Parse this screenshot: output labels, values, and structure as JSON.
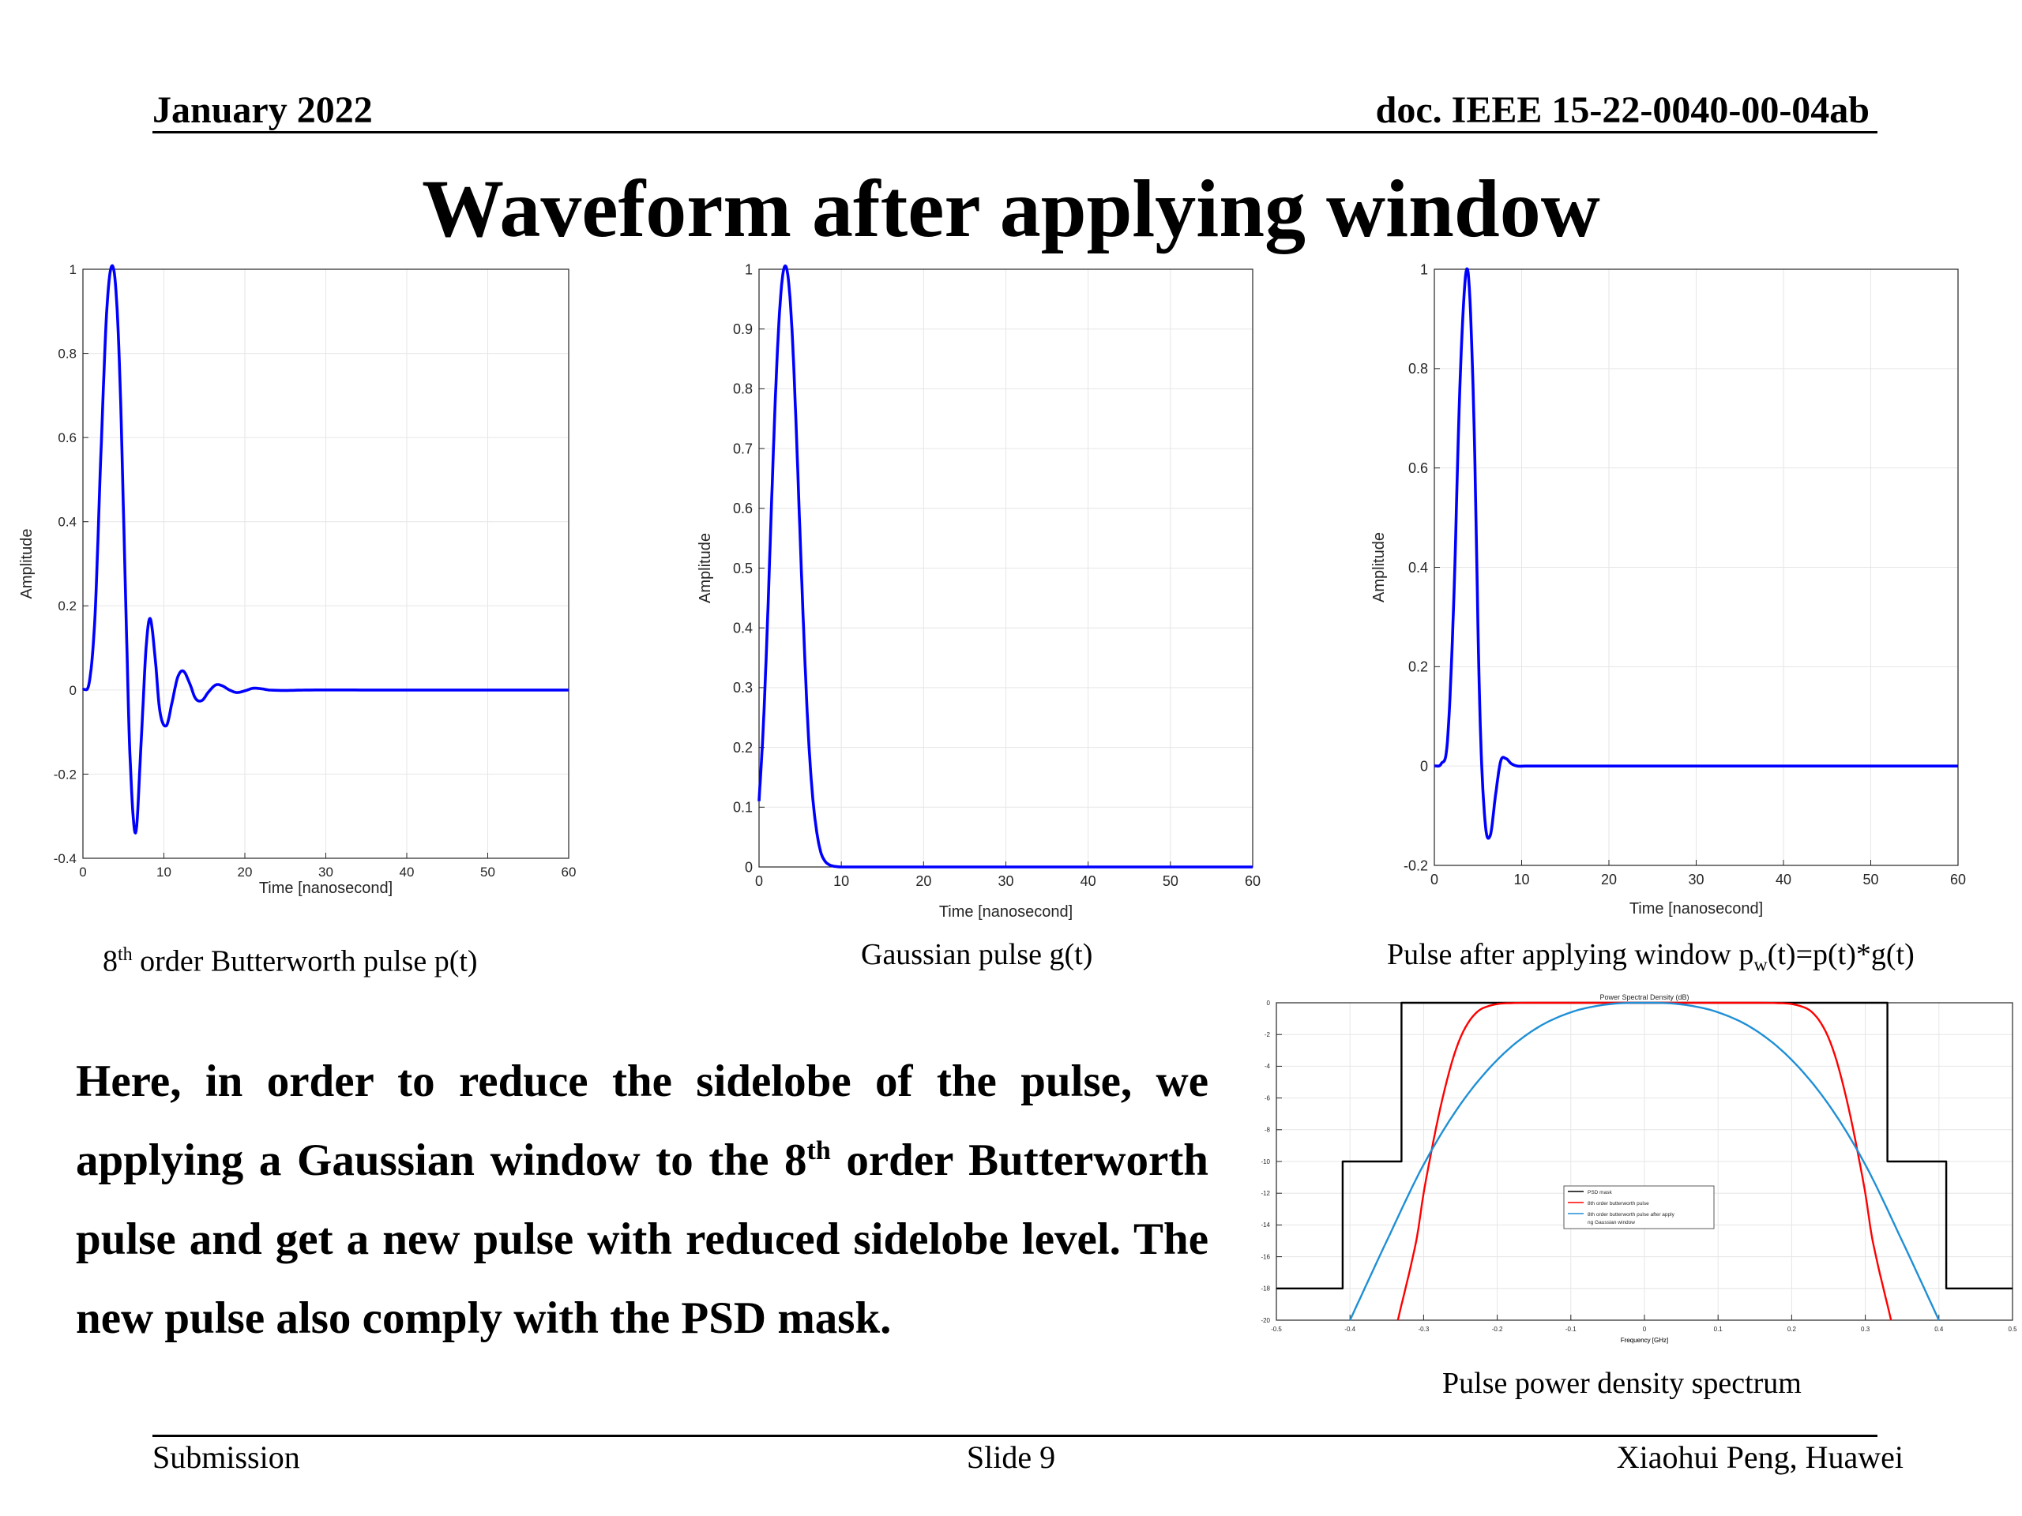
{
  "header": {
    "date": "January 2022",
    "doc_id": "doc. IEEE 15-22-0040-00-04ab"
  },
  "title": "Waveform after applying window",
  "captions": {
    "butterworth": {
      "sup": "th",
      "text": " order Butterworth pulse p(t)",
      "num": "8"
    },
    "gaussian": "Gaussian pulse g(t)",
    "windowed": {
      "pre": "Pulse after applying window p",
      "sub": "w",
      "post": "(t)=p(t)*g(t)"
    },
    "psd": "Pulse power density spectrum"
  },
  "body": {
    "p1": "Here, in order to reduce the sidelobe of the pulse, we applying a Gaussian window to the 8",
    "sup": "th",
    "p2": " order Butterworth pulse and get a new pulse with reduced sidelobe level. The new pulse also comply with the PSD mask."
  },
  "footer": {
    "left": "Submission",
    "center": "Slide 9",
    "right": "Xiaohui Peng, Huawei"
  },
  "colors": {
    "pulse": "#0000ff",
    "mask": "#000000",
    "butterworth": "#ff0000",
    "windowed": "#1f8fd6",
    "text": "#000000"
  },
  "chart_data": [
    {
      "id": "butterworth",
      "type": "line",
      "title": "",
      "xlabel": "Time [nanosecond]",
      "ylabel": "Amplitude",
      "xlim": [
        0,
        60
      ],
      "ylim": [
        -0.4,
        1
      ],
      "xticks": [
        0,
        10,
        20,
        30,
        40,
        50,
        60
      ],
      "yticks": [
        -0.4,
        -0.2,
        0,
        0.2,
        0.4,
        0.6,
        0.8,
        1
      ],
      "ytick_labels": [
        "-0.4",
        "-0.2",
        "0",
        "0.2",
        "0.4",
        "0.6",
        "0.8",
        "1"
      ],
      "grid": true,
      "series": [
        {
          "color": "#0000ff",
          "x": [
            0,
            0.8,
            1.5,
            2.2,
            3.0,
            3.8,
            4.5,
            5.3,
            5.8,
            6.5,
            7.2,
            7.8,
            8.3,
            8.9,
            9.5,
            10.3,
            11.0,
            11.7,
            12.4,
            13.2,
            13.9,
            14.7,
            15.5,
            16.4,
            17.2,
            18.1,
            19.0,
            20.0,
            21.0,
            22.0,
            23.0,
            25.0,
            28.0,
            35.0,
            60.0
          ],
          "y": [
            0,
            0.02,
            0.18,
            0.55,
            0.92,
            1.0,
            0.78,
            0.2,
            -0.15,
            -0.34,
            -0.12,
            0.1,
            0.17,
            0.08,
            -0.05,
            -0.085,
            -0.03,
            0.03,
            0.045,
            0.015,
            -0.02,
            -0.025,
            -0.005,
            0.012,
            0.01,
            0.0,
            -0.006,
            -0.002,
            0.004,
            0.003,
            0.0,
            -0.001,
            0.0,
            0.0,
            0.0
          ]
        }
      ]
    },
    {
      "id": "gaussian",
      "type": "line",
      "title": "",
      "xlabel": "Time [nanosecond]",
      "ylabel": "Amplitude",
      "xlim": [
        0,
        60
      ],
      "ylim": [
        0,
        1
      ],
      "xticks": [
        0,
        10,
        20,
        30,
        40,
        50,
        60
      ],
      "yticks": [
        0,
        0.1,
        0.2,
        0.3,
        0.4,
        0.5,
        0.6,
        0.7,
        0.8,
        0.9,
        1
      ],
      "ytick_labels": [
        "0",
        "0.1",
        "0.2",
        "0.3",
        "0.4",
        "0.5",
        "0.6",
        "0.7",
        "0.8",
        "0.9",
        "1"
      ],
      "grid": true,
      "series": [
        {
          "color": "#0000ff",
          "x": [
            0,
            0.5,
            1.0,
            1.5,
            2.0,
            2.5,
            3.0,
            3.5,
            4.0,
            4.5,
            5.0,
            5.5,
            6.0,
            6.5,
            7.0,
            7.5,
            8.0,
            8.5,
            9.0,
            9.5,
            10.0,
            11.0,
            12.0,
            60.0
          ],
          "y": [
            0.11,
            0.23,
            0.4,
            0.6,
            0.79,
            0.93,
            1.0,
            0.99,
            0.9,
            0.74,
            0.55,
            0.37,
            0.22,
            0.12,
            0.06,
            0.025,
            0.01,
            0.004,
            0.0015,
            0.0005,
            0.0,
            0.0,
            0.0,
            0.0
          ]
        }
      ]
    },
    {
      "id": "windowed",
      "type": "line",
      "title": "",
      "xlabel": "Time [nanosecond]",
      "ylabel": "Amplitude",
      "xlim": [
        0,
        60
      ],
      "ylim": [
        -0.2,
        1
      ],
      "xticks": [
        0,
        10,
        20,
        30,
        40,
        50,
        60
      ],
      "yticks": [
        -0.2,
        0,
        0.2,
        0.4,
        0.6,
        0.8,
        1
      ],
      "ytick_labels": [
        "-0.2",
        "0",
        "0.2",
        "0.4",
        "0.6",
        "0.8",
        "1"
      ],
      "grid": true,
      "series": [
        {
          "color": "#0000ff",
          "x": [
            0,
            0.8,
            1.5,
            2.2,
            3.0,
            3.8,
            4.5,
            5.2,
            5.8,
            6.4,
            7.0,
            7.6,
            8.2,
            8.8,
            9.5,
            10.5,
            12.0,
            60.0
          ],
          "y": [
            0,
            0.005,
            0.05,
            0.32,
            0.8,
            1.0,
            0.72,
            0.12,
            -0.11,
            -0.14,
            -0.06,
            0.01,
            0.015,
            0.005,
            0.0,
            0.0,
            0.0,
            0.0
          ]
        }
      ]
    },
    {
      "id": "psd",
      "type": "line",
      "title": "Power Spectral Density (dB)",
      "xlabel": "Frequency [GHz]",
      "ylabel": "",
      "xlim": [
        -0.5,
        0.5
      ],
      "ylim": [
        -20,
        0
      ],
      "xticks": [
        -0.5,
        -0.4,
        -0.3,
        -0.2,
        -0.1,
        0,
        0.1,
        0.2,
        0.3,
        0.4,
        0.5
      ],
      "xtick_labels": [
        "-0.5",
        "-0.4",
        "-0.3",
        "-0.2",
        "-0.1",
        "0",
        "0.1",
        "0.2",
        "0.3",
        "0.4",
        "0.5"
      ],
      "yticks": [
        -20,
        -18,
        -16,
        -14,
        -12,
        -10,
        -8,
        -6,
        -4,
        -2,
        0
      ],
      "ytick_labels": [
        "-20",
        "-18",
        "-16",
        "-14",
        "-12",
        "-10",
        "-8",
        "-6",
        "-4",
        "-2",
        "0"
      ],
      "grid": true,
      "legend": [
        "PSD mask",
        "8th order butterworth pulse",
        "8th order butterworth pulse after applying Gaussian window"
      ],
      "legend_position": "center",
      "series": [
        {
          "name": "PSD mask",
          "color": "#000000",
          "x": [
            -0.5,
            -0.41,
            -0.41,
            -0.33,
            -0.33,
            0.33,
            0.33,
            0.41,
            0.41,
            0.5
          ],
          "y": [
            -18,
            -18,
            -10,
            -10,
            0,
            0,
            -10,
            -10,
            -18,
            -18
          ]
        },
        {
          "name": "8th order butterworth pulse",
          "color": "#ff0000",
          "x": [
            -0.335,
            -0.31,
            -0.3,
            -0.29,
            -0.28,
            -0.27,
            -0.26,
            -0.25,
            -0.24,
            -0.23,
            -0.22,
            -0.2,
            -0.18,
            -0.15,
            -0.1,
            0,
            0.1,
            0.15,
            0.18,
            0.2,
            0.22,
            0.23,
            0.24,
            0.25,
            0.26,
            0.27,
            0.28,
            0.29,
            0.3,
            0.31,
            0.335
          ],
          "y": [
            -20,
            -15,
            -12,
            -9.5,
            -7.2,
            -5.2,
            -3.5,
            -2.2,
            -1.3,
            -0.7,
            -0.35,
            -0.08,
            -0.02,
            0,
            0,
            0,
            0,
            0,
            -0.02,
            -0.08,
            -0.35,
            -0.7,
            -1.3,
            -2.2,
            -3.5,
            -5.2,
            -7.2,
            -9.5,
            -12,
            -15,
            -20
          ]
        },
        {
          "name": "8th order butterworth pulse after applying Gaussian window",
          "color": "#1f8fd6",
          "x": [
            -0.4,
            -0.35,
            -0.3,
            -0.25,
            -0.2,
            -0.15,
            -0.1,
            -0.05,
            0,
            0.05,
            0.1,
            0.15,
            0.2,
            0.25,
            0.3,
            0.35,
            0.4
          ],
          "y": [
            -20,
            -15,
            -10.2,
            -6.4,
            -3.6,
            -1.7,
            -0.6,
            -0.1,
            0,
            -0.1,
            -0.6,
            -1.7,
            -3.6,
            -6.4,
            -10.2,
            -15,
            -20
          ]
        }
      ]
    }
  ]
}
